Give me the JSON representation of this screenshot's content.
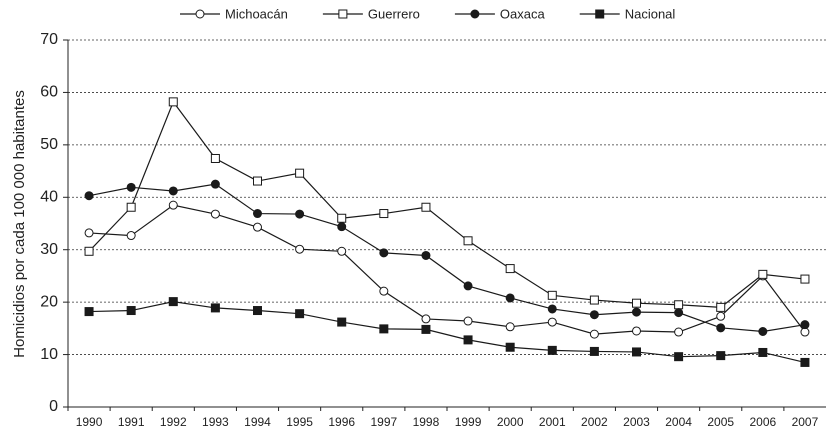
{
  "chart_data": {
    "type": "line",
    "y_label": "Homicidios por cada 100 000 habitantes",
    "categories": [
      "1990",
      "1991",
      "1992",
      "1993",
      "1994",
      "1995",
      "1996",
      "1997",
      "1998",
      "1999",
      "2000",
      "2001",
      "2002",
      "2003",
      "2004",
      "2005",
      "2006",
      "2007"
    ],
    "series": [
      {
        "name": "Michoacán",
        "color": "#1a1a1a",
        "marker": "circle",
        "filled": false,
        "values": [
          33.2,
          32.7,
          38.5,
          36.8,
          34.3,
          30.1,
          29.7,
          22.1,
          16.8,
          16.4,
          15.3,
          16.2,
          13.9,
          14.5,
          14.3,
          17.3,
          25,
          14.3
        ]
      },
      {
        "name": "Guerrero",
        "color": "#1a1a1a",
        "marker": "square",
        "filled": false,
        "values": [
          29.7,
          38.1,
          58.2,
          47.4,
          43.1,
          44.6,
          36,
          36.9,
          38.1,
          31.7,
          26.4,
          21.3,
          20.4,
          19.8,
          19.5,
          19,
          25.3,
          24.4
        ]
      },
      {
        "name": "Oaxaca",
        "color": "#1a1a1a",
        "marker": "circle",
        "filled": true,
        "values": [
          40.3,
          41.9,
          41.2,
          42.5,
          36.9,
          36.8,
          34.4,
          29.4,
          28.9,
          23.1,
          20.8,
          18.7,
          17.6,
          18.1,
          18,
          15.1,
          14.4,
          15.7
        ]
      },
      {
        "name": "Nacional",
        "color": "#1a1a1a",
        "marker": "square",
        "filled": true,
        "values": [
          18.2,
          18.4,
          20.1,
          18.9,
          18.4,
          17.8,
          16.2,
          14.9,
          14.8,
          12.8,
          11.4,
          10.8,
          10.6,
          10.5,
          9.6,
          9.8,
          10.4,
          8.5
        ]
      }
    ],
    "ylim": [
      0,
      70
    ],
    "yticks": [
      0,
      10,
      20,
      30,
      40,
      50,
      60,
      70
    ],
    "grid": true,
    "legend": "top"
  }
}
